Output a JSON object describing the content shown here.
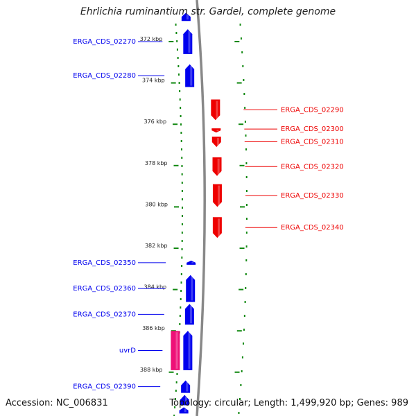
{
  "title": "Ehrlichia ruminantium str. Gardel, complete genome",
  "footer": {
    "accession": "Accession: NC_006831",
    "summary": "Topology: circular; Length: 1,499,920 bp; Genes: 989"
  },
  "colors": {
    "forward_gene": "#ee0000",
    "reverse_gene": "#0000ee",
    "other_gene": "#ee1177",
    "tick": "#118811",
    "backbone": "#888888"
  },
  "chart_data": {
    "type": "genome-map",
    "unit": "kbp",
    "ticks": [
      {
        "kbp": 372,
        "label": "372 kbp"
      },
      {
        "kbp": 374,
        "label": "374 kbp"
      },
      {
        "kbp": 376,
        "label": "376 kbp"
      },
      {
        "kbp": 378,
        "label": "378 kbp"
      },
      {
        "kbp": 380,
        "label": "380 kbp"
      },
      {
        "kbp": 382,
        "label": "382 kbp"
      },
      {
        "kbp": 384,
        "label": "384 kbp"
      },
      {
        "kbp": 386,
        "label": "386 kbp"
      },
      {
        "kbp": 388,
        "label": "388 kbp"
      }
    ],
    "genes": [
      {
        "name": "ERGA_CDS_02270",
        "strand": "reverse",
        "start": 371.4,
        "end": 372.6,
        "labelled": true
      },
      {
        "name": "ERGA_CDS_02280",
        "strand": "reverse",
        "start": 373.1,
        "end": 374.2,
        "labelled": true
      },
      {
        "name": "ERGA_CDS_02290",
        "strand": "forward",
        "start": 374.8,
        "end": 375.8,
        "labelled": true
      },
      {
        "name": "ERGA_CDS_02300",
        "strand": "forward",
        "start": 376.2,
        "end": 376.4,
        "labelled": true
      },
      {
        "name": "ERGA_CDS_02310",
        "strand": "forward",
        "start": 376.6,
        "end": 377.1,
        "labelled": true
      },
      {
        "name": "ERGA_CDS_02320",
        "strand": "forward",
        "start": 377.6,
        "end": 378.5,
        "labelled": true
      },
      {
        "name": "ERGA_CDS_02330",
        "strand": "forward",
        "start": 378.9,
        "end": 380.0,
        "labelled": true
      },
      {
        "name": "ERGA_CDS_02340",
        "strand": "forward",
        "start": 380.5,
        "end": 381.5,
        "labelled": true
      },
      {
        "name": "ERGA_CDS_02350",
        "strand": "reverse",
        "start": 382.6,
        "end": 382.8,
        "labelled": true
      },
      {
        "name": "ERGA_CDS_02360",
        "strand": "reverse",
        "start": 383.3,
        "end": 384.6,
        "labelled": true
      },
      {
        "name": "ERGA_CDS_02370",
        "strand": "reverse",
        "start": 384.7,
        "end": 385.7,
        "labelled": true
      },
      {
        "name": "uvrD",
        "strand": "reverse",
        "start": 386.0,
        "end": 387.9,
        "labelled": true
      },
      {
        "name": "ERGA_CDS_02390",
        "strand": "reverse",
        "start": 388.4,
        "end": 389.0,
        "labelled": true
      },
      {
        "name": "",
        "strand": "other",
        "start": 386.0,
        "end": 387.9,
        "labelled": false
      },
      {
        "name": "",
        "strand": "reverse",
        "start": 370.6,
        "end": 371.0,
        "labelled": false
      },
      {
        "name": "",
        "strand": "reverse",
        "start": 389.1,
        "end": 389.6,
        "labelled": false
      },
      {
        "name": "",
        "strand": "reverse",
        "start": 389.7,
        "end": 390.0,
        "labelled": false
      }
    ]
  }
}
